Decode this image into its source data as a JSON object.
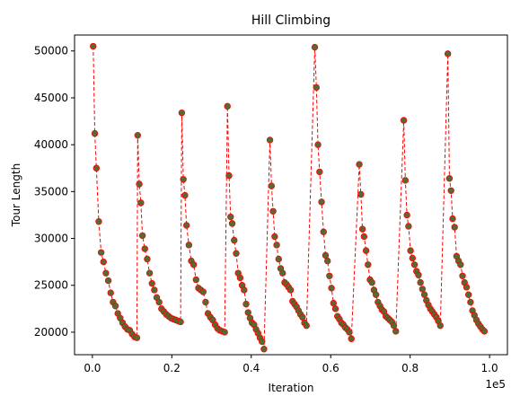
{
  "chart_data": {
    "type": "scatter",
    "title": "Hill Climbing",
    "xlabel": "Iteration",
    "ylabel": "Tour Length",
    "x_offset_label": "1e5",
    "xlim": [
      -0.045,
      1.045
    ],
    "ylim": [
      17600,
      51700
    ],
    "xticks": [
      0.0,
      0.2,
      0.4,
      0.6,
      0.8,
      1.0
    ],
    "xtick_labels": [
      "0.0",
      "0.2",
      "0.4",
      "0.6",
      "0.8",
      "1.0"
    ],
    "yticks": [
      20000,
      25000,
      30000,
      35000,
      40000,
      45000,
      50000
    ],
    "ytick_labels": [
      "20000",
      "25000",
      "30000",
      "35000",
      "40000",
      "45000",
      "50000"
    ],
    "grid": false,
    "colors": {
      "line": "#ff0000",
      "marker_fill": "#556b2f",
      "marker_edge": "#ff0000"
    },
    "series": [
      {
        "line_style": "dashed",
        "marker": "circle",
        "x": [
          0.002,
          0.006,
          0.01,
          0.016,
          0.022,
          0.028,
          0.034,
          0.04,
          0.046,
          0.052,
          0.058,
          0.064,
          0.07,
          0.076,
          0.082,
          0.088,
          0.094,
          0.1,
          0.106,
          0.112,
          0.114,
          0.118,
          0.122,
          0.126,
          0.132,
          0.138,
          0.144,
          0.15,
          0.156,
          0.162,
          0.168,
          0.174,
          0.18,
          0.186,
          0.192,
          0.198,
          0.204,
          0.21,
          0.216,
          0.222,
          0.225,
          0.229,
          0.233,
          0.237,
          0.243,
          0.249,
          0.255,
          0.261,
          0.267,
          0.273,
          0.279,
          0.285,
          0.291,
          0.297,
          0.303,
          0.309,
          0.315,
          0.321,
          0.327,
          0.333,
          0.34,
          0.344,
          0.348,
          0.352,
          0.357,
          0.362,
          0.367,
          0.372,
          0.377,
          0.382,
          0.387,
          0.392,
          0.397,
          0.402,
          0.407,
          0.412,
          0.417,
          0.422,
          0.427,
          0.432,
          0.447,
          0.451,
          0.455,
          0.459,
          0.464,
          0.469,
          0.474,
          0.479,
          0.484,
          0.489,
          0.494,
          0.499,
          0.504,
          0.509,
          0.514,
          0.519,
          0.524,
          0.529,
          0.534,
          0.539,
          0.56,
          0.564,
          0.568,
          0.572,
          0.577,
          0.582,
          0.587,
          0.592,
          0.597,
          0.602,
          0.607,
          0.612,
          0.617,
          0.622,
          0.627,
          0.632,
          0.637,
          0.642,
          0.647,
          0.652,
          0.672,
          0.676,
          0.68,
          0.684,
          0.689,
          0.694,
          0.699,
          0.704,
          0.709,
          0.714,
          0.719,
          0.724,
          0.729,
          0.734,
          0.739,
          0.744,
          0.749,
          0.754,
          0.759,
          0.764,
          0.784,
          0.788,
          0.792,
          0.796,
          0.801,
          0.806,
          0.811,
          0.816,
          0.821,
          0.826,
          0.831,
          0.836,
          0.841,
          0.846,
          0.851,
          0.856,
          0.861,
          0.866,
          0.871,
          0.876,
          0.895,
          0.899,
          0.903,
          0.907,
          0.912,
          0.917,
          0.922,
          0.927,
          0.932,
          0.937,
          0.942,
          0.947,
          0.952,
          0.957,
          0.962,
          0.967,
          0.972,
          0.977,
          0.982,
          0.987
        ],
        "y": [
          50500,
          41200,
          37500,
          31800,
          28500,
          27500,
          26300,
          25500,
          24200,
          23200,
          22800,
          22000,
          21500,
          21000,
          20600,
          20300,
          20200,
          19800,
          19500,
          19400,
          41000,
          35800,
          33800,
          30300,
          28900,
          27800,
          26300,
          25200,
          24500,
          23700,
          23200,
          22500,
          22200,
          21900,
          21700,
          21500,
          21400,
          21300,
          21200,
          21100,
          43400,
          36300,
          34600,
          31400,
          29300,
          27600,
          27200,
          25600,
          24700,
          24500,
          24300,
          23200,
          22000,
          21600,
          21300,
          20800,
          20400,
          20200,
          20100,
          20000,
          44100,
          36700,
          32300,
          31600,
          29800,
          28400,
          26300,
          25800,
          25000,
          24500,
          23000,
          22100,
          21500,
          21000,
          20800,
          20300,
          19900,
          19400,
          19000,
          18200,
          40500,
          35600,
          32900,
          30200,
          29300,
          27800,
          26800,
          26300,
          25300,
          25100,
          24800,
          24500,
          23300,
          23000,
          22700,
          22300,
          21900,
          21600,
          21000,
          20700,
          50400,
          46100,
          40000,
          37100,
          33900,
          30700,
          28200,
          27600,
          26000,
          24700,
          23100,
          22500,
          21700,
          21400,
          21000,
          20800,
          20500,
          20300,
          20000,
          19300,
          37900,
          34700,
          31000,
          30200,
          28700,
          27200,
          25600,
          25300,
          24500,
          24000,
          23200,
          22800,
          22400,
          22200,
          21700,
          21500,
          21300,
          21100,
          20700,
          20100,
          42600,
          36200,
          32500,
          31300,
          28700,
          27900,
          27200,
          26500,
          26100,
          25300,
          24600,
          24000,
          23400,
          22900,
          22500,
          22200,
          21900,
          21600,
          21200,
          20700,
          49700,
          36400,
          35100,
          32100,
          31200,
          28100,
          27600,
          27200,
          26000,
          25300,
          24800,
          24000,
          23200,
          22300,
          21800,
          21300,
          20900,
          20600,
          20300,
          20100
        ]
      }
    ]
  }
}
